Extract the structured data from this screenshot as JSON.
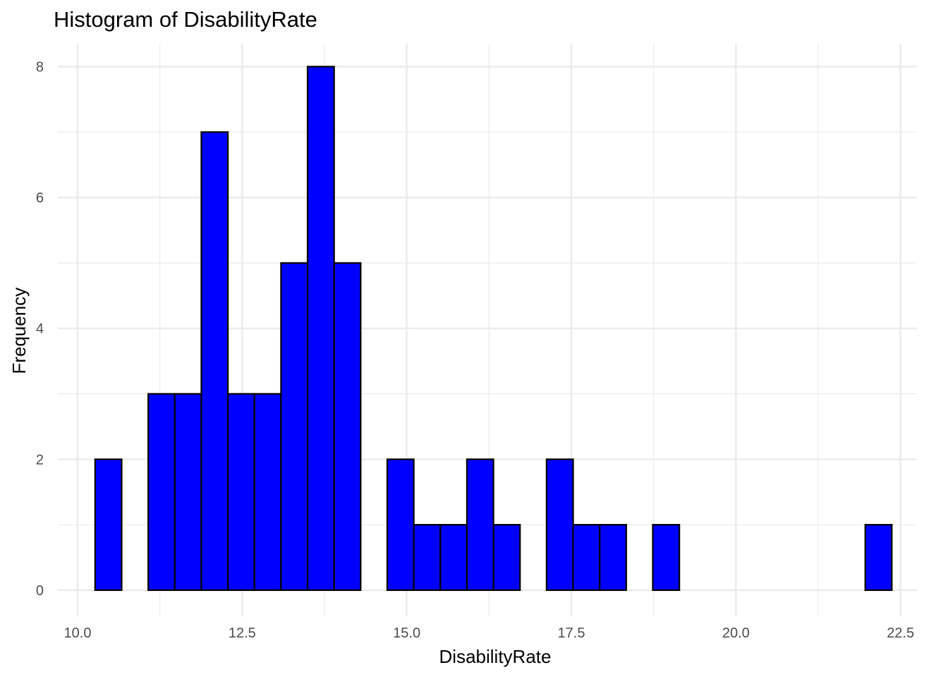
{
  "chart_data": {
    "type": "bar",
    "title": "Histogram of DisabilityRate",
    "xlabel": "DisabilityRate",
    "ylabel": "Frequency",
    "bin_width": 0.4034,
    "bin_start": 10.266,
    "counts": [
      2,
      0,
      3,
      3,
      7,
      3,
      3,
      5,
      8,
      5,
      0,
      2,
      1,
      1,
      2,
      1,
      0,
      2,
      1,
      1,
      0,
      1,
      0,
      0,
      0,
      0,
      0,
      0,
      0,
      1
    ],
    "xlim": [
      9.7,
      22.75
    ],
    "ylim": [
      -0.4,
      8.35
    ],
    "x_ticks": [
      10.0,
      12.5,
      15.0,
      17.5,
      20.0,
      22.5
    ],
    "x_tick_labels": [
      "10.0",
      "12.5",
      "15.0",
      "17.5",
      "20.0",
      "22.5"
    ],
    "y_ticks": [
      0,
      2,
      4,
      6,
      8
    ],
    "y_tick_labels": [
      "0",
      "2",
      "4",
      "6",
      "8"
    ],
    "grid": true,
    "fill_color": "#0000ff",
    "outline_color": "#000000",
    "grid_color": "#ebebeb"
  }
}
